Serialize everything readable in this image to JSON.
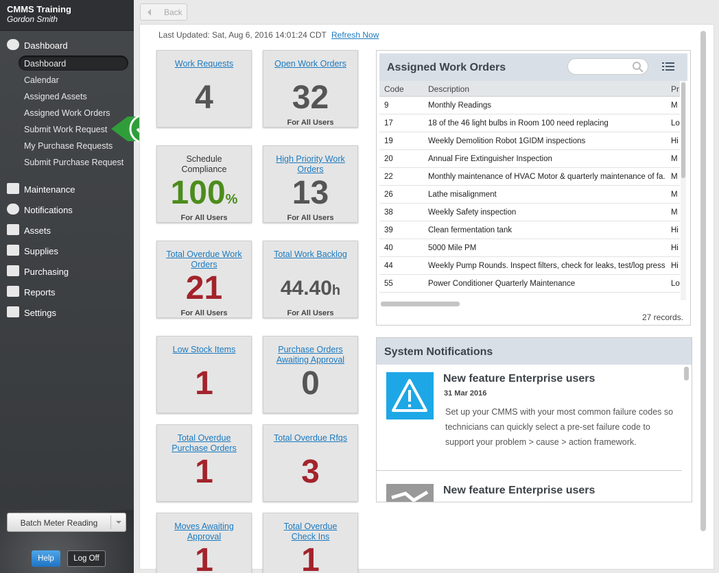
{
  "header": {
    "title": "CMMS Training",
    "user": "Gordon Smith"
  },
  "nav": {
    "sections": [
      "Dashboard",
      "Maintenance",
      "Notifications",
      "Assets",
      "Supplies",
      "Purchasing",
      "Reports",
      "Settings"
    ],
    "dashboard_items": [
      "Dashboard",
      "Calendar",
      "Assigned Assets",
      "Assigned Work Orders",
      "Submit Work Request",
      "My Purchase Requests",
      "Submit Purchase Request"
    ]
  },
  "sidebar_footer": {
    "batch": "Batch Meter Reading",
    "help": "Help",
    "logoff": "Log Off"
  },
  "toolbar": {
    "back": "Back"
  },
  "status": {
    "updated": "Last Updated: Sat, Aug 6, 2016 14:01:24 CDT",
    "refresh": "Refresh Now"
  },
  "tiles": [
    {
      "label": "Work Requests",
      "value": "4",
      "color": "#555555"
    },
    {
      "label": "Open Work Orders",
      "value": "32",
      "sub": "For All Users",
      "color": "#555555"
    },
    {
      "label": "Schedule Compliance",
      "value": "100",
      "unit": "%",
      "sub": "For All Users",
      "color": "#4c8c1c",
      "plain": true
    },
    {
      "label": "High Priority Work Orders",
      "value": "13",
      "sub": "For All Users",
      "color": "#555555"
    },
    {
      "label": "Total Overdue Work Orders",
      "value": "21",
      "sub": "For All Users",
      "color": "#a3232b"
    },
    {
      "label": "Total Work Backlog",
      "value": "44.40",
      "unit": "h",
      "sub": "For All Users",
      "color": "#555555",
      "small": true
    },
    {
      "label": "Low Stock Items",
      "value": "1",
      "color": "#a3232b"
    },
    {
      "label": "Purchase Orders Awaiting Approval",
      "value": "0",
      "color": "#555555"
    },
    {
      "label": "Total Overdue Purchase Orders",
      "value": "1",
      "color": "#a3232b"
    },
    {
      "label": "Total Overdue Rfqs",
      "value": "3",
      "color": "#a3232b"
    },
    {
      "label": "Moves Awaiting Approval",
      "value": "1",
      "color": "#a3232b"
    },
    {
      "label": "Total Overdue Check Ins",
      "value": "1",
      "color": "#a3232b"
    }
  ],
  "work_orders": {
    "title": "Assigned Work Orders",
    "columns": [
      "Code",
      "Description",
      "Pr"
    ],
    "rows": [
      [
        "9",
        "Monthly Readings",
        "M"
      ],
      [
        "17",
        "18 of the 46 light bulbs in Room 100 need replacing",
        "Lo"
      ],
      [
        "19",
        "Weekly Demolition Robot 1GIDM inspections",
        "Hi"
      ],
      [
        "20",
        "Annual Fire Extinguisher Inspection",
        "M"
      ],
      [
        "22",
        "Monthly maintenance of HVAC Motor & quarterly maintenance of fa...",
        "M"
      ],
      [
        "26",
        "Lathe misalignment",
        "M"
      ],
      [
        "38",
        "Weekly Safety inspection",
        "M"
      ],
      [
        "39",
        "Clean fermentation tank",
        "Hi"
      ],
      [
        "40",
        "5000 Mile PM",
        "Hi"
      ],
      [
        "44",
        "Weekly Pump Rounds. Inspect filters, check for leaks, test/log press...",
        "Hi"
      ],
      [
        "55",
        "Power Conditioner Quarterly Maintenance",
        "Lo"
      ]
    ],
    "footer": "27 records."
  },
  "notifications": {
    "title": "System Notifications",
    "items": [
      {
        "title": "New feature Enterprise users",
        "date": "31 Mar 2016",
        "body": "Set up your CMMS with your most common failure codes so technicians can quickly select a pre-set failure code to support your problem > cause > action framework."
      },
      {
        "title": "New feature Enterprise users"
      }
    ]
  }
}
